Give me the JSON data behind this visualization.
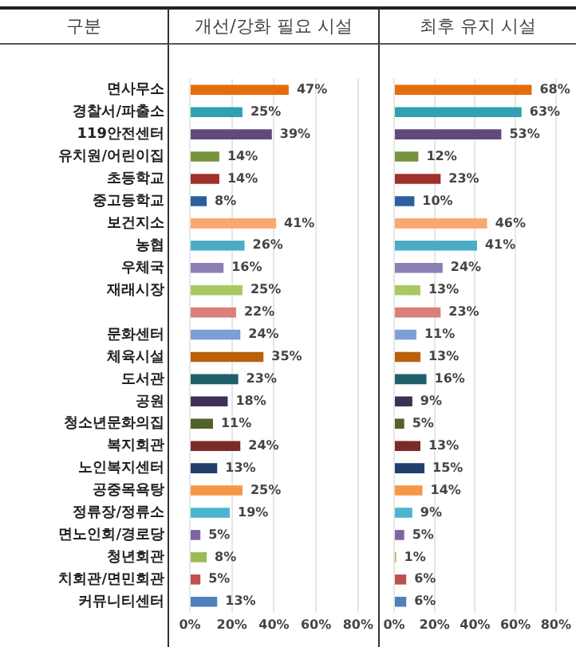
{
  "chart_data": [
    {
      "type": "bar",
      "orientation": "horizontal",
      "title": "개선/강화 필요 시설",
      "annotations": [
        "구분"
      ],
      "categories": [
        "면사무소",
        "경찰서/파출소",
        "119안전센터",
        "유치원/어린이집",
        "초등학교",
        "중고등학교",
        "보건지소",
        "농협",
        "우체국",
        "재래시장",
        null,
        "문화센터",
        "체육시설",
        "도서관",
        "공원",
        "청소년문화의집",
        "복지회관",
        "노인복지센터",
        "공중목욕탕",
        "정류장/정류소",
        "면노인회/경로당",
        "청년회관",
        "치회관/면민회관",
        "커뮤니티센터"
      ],
      "values": [
        47,
        25,
        39,
        14,
        14,
        8,
        41,
        26,
        16,
        25,
        22,
        24,
        35,
        23,
        18,
        11,
        24,
        13,
        25,
        19,
        5,
        8,
        5,
        13
      ],
      "value_labels": [
        "47%",
        "25%",
        "39%",
        "14%",
        "14%",
        "8%",
        "41%",
        "26%",
        "16%",
        "25%",
        "22%",
        "24%",
        "35%",
        "23%",
        "18%",
        "11%",
        "24%",
        "13%",
        "25%",
        "19%",
        "5%",
        "8%",
        "5%",
        "13%"
      ],
      "colors": [
        "#e46c0a",
        "#31a0b0",
        "#604a7b",
        "#77933c",
        "#a0302c",
        "#2c5f9e",
        "#f9a870",
        "#4bacc6",
        "#8c7fb5",
        "#a8c960",
        "#d9807d",
        "#7b9fd6",
        "#b8600b",
        "#215f6b",
        "#3d3057",
        "#4f6228",
        "#7a2a28",
        "#203f6b",
        "#f79646",
        "#4bb5cf",
        "#8064a2",
        "#9bbb59",
        "#c0504d",
        "#4f81bd"
      ],
      "xlim": [
        0,
        80
      ],
      "xticks": [
        {
          "value": 0,
          "label": "0%"
        },
        {
          "value": 20,
          "label": "20%"
        },
        {
          "value": 40,
          "label": "40%"
        },
        {
          "value": 60,
          "label": "60%"
        },
        {
          "value": 80,
          "label": "80%"
        }
      ],
      "grid": "x",
      "legend": false
    },
    {
      "type": "bar",
      "orientation": "horizontal",
      "title": "최후 유지 시설",
      "tick_labels": "x",
      "categories": [
        null,
        null,
        null,
        null,
        null,
        null,
        null,
        null,
        null,
        null,
        null,
        null,
        null,
        null,
        null,
        null,
        null,
        null,
        null,
        null,
        null,
        null,
        null,
        null
      ],
      "values": [
        68,
        63,
        53,
        12,
        23,
        10,
        46,
        41,
        24,
        13,
        23,
        11,
        13,
        16,
        9,
        5,
        13,
        15,
        14,
        9,
        5,
        1,
        6,
        6
      ],
      "value_labels": [
        "68%",
        "63%",
        "53%",
        "12%",
        "23%",
        "10%",
        "46%",
        "41%",
        "24%",
        "13%",
        "23%",
        "11%",
        "13%",
        "16%",
        "9%",
        "5%",
        "13%",
        "15%",
        "14%",
        "9%",
        "5%",
        "1%",
        "6%",
        "6%"
      ],
      "colors": [
        "#e46c0a",
        "#31a0b0",
        "#604a7b",
        "#77933c",
        "#a0302c",
        "#2c5f9e",
        "#f9a870",
        "#4bacc6",
        "#8c7fb5",
        "#a8c960",
        "#d9807d",
        "#7b9fd6",
        "#b8600b",
        "#215f6b",
        "#3d3057",
        "#4f6228",
        "#7a2a28",
        "#203f6b",
        "#f79646",
        "#4bb5cf",
        "#8064a2",
        "#9bbb59",
        "#c0504d",
        "#4f81bd"
      ],
      "xlim": [
        0,
        80
      ],
      "xticks": [
        {
          "value": 0,
          "label": "0%"
        },
        {
          "value": 20,
          "label": "20%"
        },
        {
          "value": 40,
          "label": "40%"
        },
        {
          "value": 60,
          "label": "60%"
        },
        {
          "value": 80,
          "label": "80%"
        }
      ],
      "grid": "x",
      "legend": false
    }
  ]
}
